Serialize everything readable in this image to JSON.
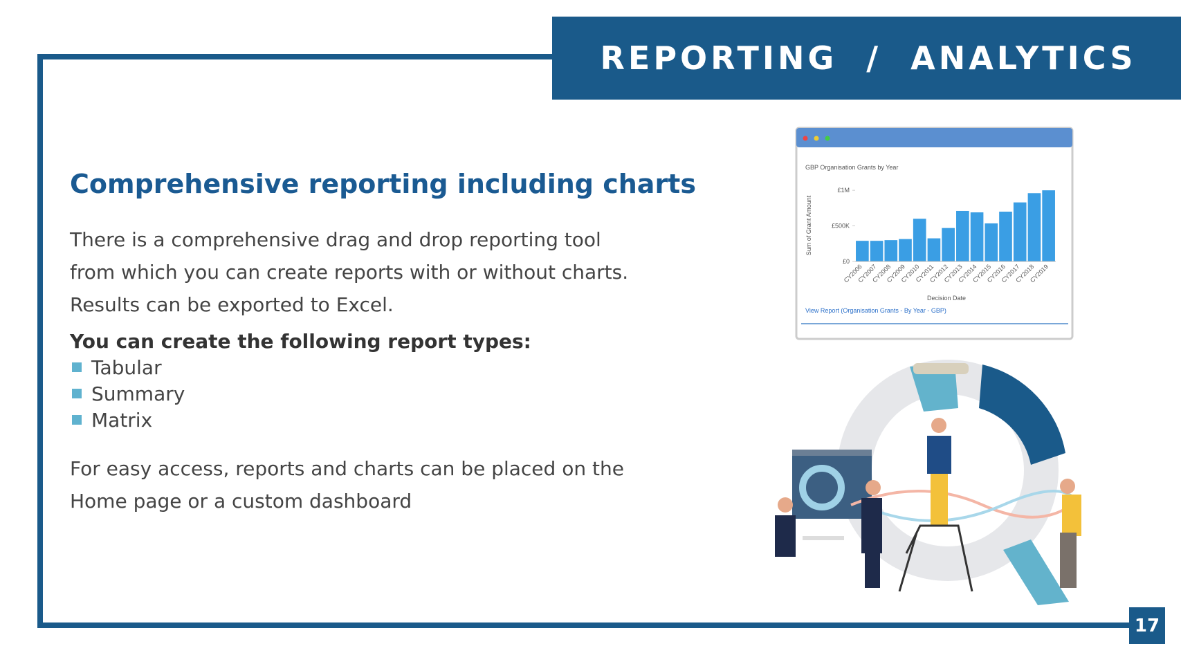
{
  "header": {
    "title": "REPORTING  /  ANALYTICS",
    "page_number": "17"
  },
  "content": {
    "heading": "Comprehensive reporting including charts",
    "intro_lines": [
      "There is a comprehensive drag  and drop reporting tool",
      "from which you can create reports with or without charts.",
      "Results can be exported to Excel."
    ],
    "list_title": "You can create the following report types:",
    "list_items": [
      "Tabular",
      "Summary",
      "Matrix"
    ],
    "closing_lines": [
      "For easy access, reports and charts can be placed on the",
      "Home page or a custom dashboard"
    ]
  },
  "chart_data": {
    "type": "bar",
    "title": "GBP Organisation Grants by Year",
    "x_label": "Decision Date",
    "y_label": "Sum of Grant Amount",
    "link": "View Report (Organisation Grants - By Year - GBP)",
    "categories": [
      "CY2006",
      "CY2007",
      "CY2008",
      "CY2009",
      "CY2010",
      "CY2011",
      "CY2012",
      "CY2013",
      "CY2014",
      "CY2015",
      "CY2016",
      "CY2017",
      "CY2018",
      "CY2019"
    ],
    "values": [
      290000,
      290000,
      300000,
      315000,
      600000,
      325000,
      470000,
      710000,
      690000,
      535000,
      700000,
      830000,
      960000,
      1000000
    ],
    "color": "#3a9ee4",
    "ylim": [
      0,
      1050000
    ],
    "yticks": [
      {
        "value": 0,
        "label": "£0"
      },
      {
        "value": 500000,
        "label": "£500K"
      },
      {
        "value": 1000000,
        "label": "£1M"
      }
    ]
  }
}
